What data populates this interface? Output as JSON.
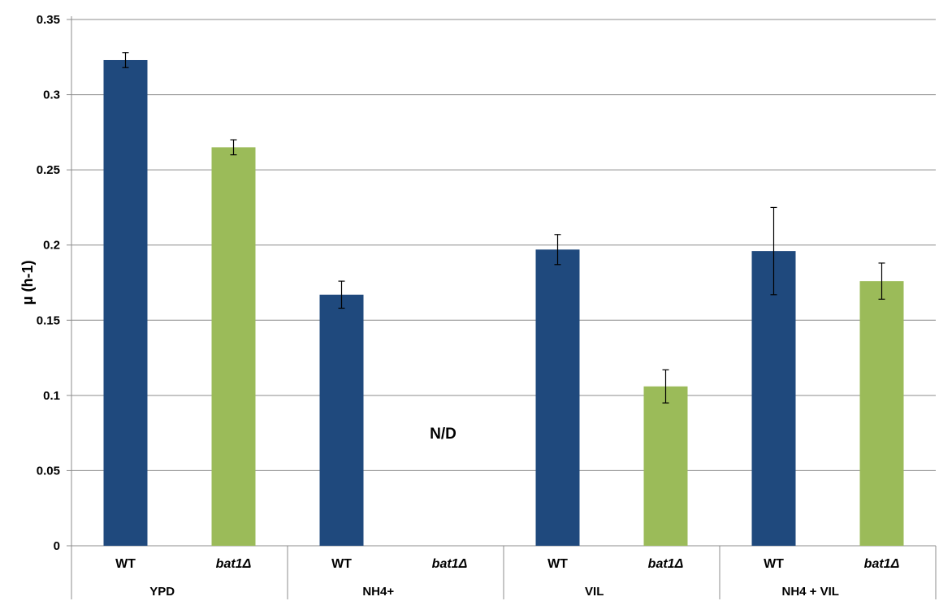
{
  "chart_data": {
    "type": "bar",
    "title": "",
    "ylabel": "μ (h-1)",
    "ylim": [
      0,
      0.35
    ],
    "yticks": [
      "0",
      "0.05",
      "0.1",
      "0.15",
      "0.2",
      "0.25",
      "0.3",
      "0.35"
    ],
    "grid": true,
    "groups": [
      {
        "label": "YPD",
        "bars": [
          {
            "label": "WT",
            "italic": false,
            "value": 0.323,
            "error": 0.005,
            "color": "#1f497d"
          },
          {
            "label": "bat1Δ",
            "italic": true,
            "value": 0.265,
            "error": 0.005,
            "color": "#9bbb59"
          }
        ]
      },
      {
        "label": "NH4+",
        "bars": [
          {
            "label": "WT",
            "italic": false,
            "value": 0.167,
            "error": 0.009,
            "color": "#1f497d"
          },
          {
            "label": "bat1Δ",
            "italic": true,
            "value": null,
            "error": null,
            "color": "#9bbb59"
          }
        ]
      },
      {
        "label": "VIL",
        "bars": [
          {
            "label": "WT",
            "italic": false,
            "value": 0.197,
            "error": 0.01,
            "color": "#1f497d"
          },
          {
            "label": "bat1Δ",
            "italic": true,
            "value": 0.106,
            "error": 0.011,
            "color": "#9bbb59"
          }
        ]
      },
      {
        "label": "NH4 + VIL",
        "bars": [
          {
            "label": "WT",
            "italic": false,
            "value": 0.196,
            "error": 0.029,
            "color": "#1f497d"
          },
          {
            "label": "bat1Δ",
            "italic": true,
            "value": 0.176,
            "error": 0.012,
            "color": "#9bbb59"
          }
        ]
      }
    ],
    "annotations": [
      {
        "text": "N/D",
        "group": 1,
        "value": 0.075
      }
    ]
  }
}
